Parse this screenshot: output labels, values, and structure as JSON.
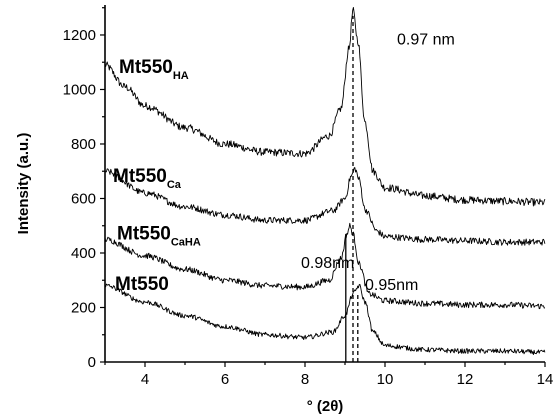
{
  "chart_data": {
    "type": "line",
    "title": "",
    "xlabel": "° (2θ)",
    "ylabel": "Intensity (a.u.)",
    "xlim": [
      3,
      14
    ],
    "ylim": [
      0,
      1310
    ],
    "xticks": [
      4,
      6,
      8,
      10,
      12,
      14
    ],
    "yticks": [
      0,
      200,
      400,
      600,
      800,
      1000,
      1200
    ],
    "grid": false,
    "series": [
      {
        "label_main": "Mt550",
        "label_sub": "HA",
        "knots": [
          [
            3,
            1090
          ],
          [
            3.5,
            1010
          ],
          [
            4,
            940
          ],
          [
            5,
            860
          ],
          [
            6,
            800
          ],
          [
            7,
            770
          ],
          [
            8,
            765
          ],
          [
            8.6,
            830
          ],
          [
            8.9,
            930
          ],
          [
            9.1,
            1150
          ],
          [
            9.2,
            1290
          ],
          [
            9.32,
            1180
          ],
          [
            9.5,
            880
          ],
          [
            9.7,
            700
          ],
          [
            10,
            640
          ],
          [
            11,
            610
          ],
          [
            12,
            595
          ],
          [
            13,
            590
          ],
          [
            14,
            585
          ]
        ],
        "noise": 14
      },
      {
        "label_main": "Mt550",
        "label_sub": "Ca",
        "knots": [
          [
            3,
            700
          ],
          [
            4,
            620
          ],
          [
            5,
            570
          ],
          [
            6,
            540
          ],
          [
            7,
            520
          ],
          [
            8,
            520
          ],
          [
            8.7,
            555
          ],
          [
            9.0,
            600
          ],
          [
            9.15,
            680
          ],
          [
            9.25,
            710
          ],
          [
            9.35,
            670
          ],
          [
            9.5,
            560
          ],
          [
            9.8,
            480
          ],
          [
            10,
            460
          ],
          [
            11,
            450
          ],
          [
            12,
            445
          ],
          [
            13,
            440
          ],
          [
            14,
            440
          ]
        ],
        "noise": 12
      },
      {
        "label_main": "Mt550",
        "label_sub": "CaHA",
        "knots": [
          [
            3,
            450
          ],
          [
            4,
            390
          ],
          [
            5,
            340
          ],
          [
            6,
            300
          ],
          [
            7,
            280
          ],
          [
            8,
            275
          ],
          [
            8.6,
            300
          ],
          [
            8.9,
            380
          ],
          [
            9.05,
            470
          ],
          [
            9.12,
            500
          ],
          [
            9.2,
            470
          ],
          [
            9.35,
            360
          ],
          [
            9.6,
            250
          ],
          [
            10,
            225
          ],
          [
            11,
            215
          ],
          [
            12,
            210
          ],
          [
            13,
            210
          ],
          [
            14,
            205
          ]
        ],
        "noise": 11
      },
      {
        "label_main": "Mt550",
        "label_sub": "",
        "knots": [
          [
            3,
            280
          ],
          [
            4,
            220
          ],
          [
            5,
            170
          ],
          [
            6,
            130
          ],
          [
            7,
            100
          ],
          [
            8,
            90
          ],
          [
            8.7,
            110
          ],
          [
            9.0,
            170
          ],
          [
            9.2,
            250
          ],
          [
            9.35,
            280
          ],
          [
            9.5,
            220
          ],
          [
            9.7,
            110
          ],
          [
            10,
            60
          ],
          [
            11,
            45
          ],
          [
            12,
            40
          ],
          [
            13,
            40
          ],
          [
            14,
            35
          ]
        ],
        "noise": 9
      }
    ],
    "annotations": [
      {
        "text": "0.97 nm",
        "x": 10.3,
        "y": 1165
      },
      {
        "text": "0.98nm",
        "x": 7.9,
        "y": 345
      },
      {
        "text": "0.95nm",
        "x": 9.5,
        "y": 265
      }
    ],
    "reference_lines": [
      {
        "x": 9.2,
        "y_top": 1270,
        "style": "dashed"
      },
      {
        "x": 9.02,
        "y_top": 470,
        "style": "solid"
      },
      {
        "x": 9.32,
        "y_top": 250,
        "style": "dashed"
      }
    ]
  }
}
